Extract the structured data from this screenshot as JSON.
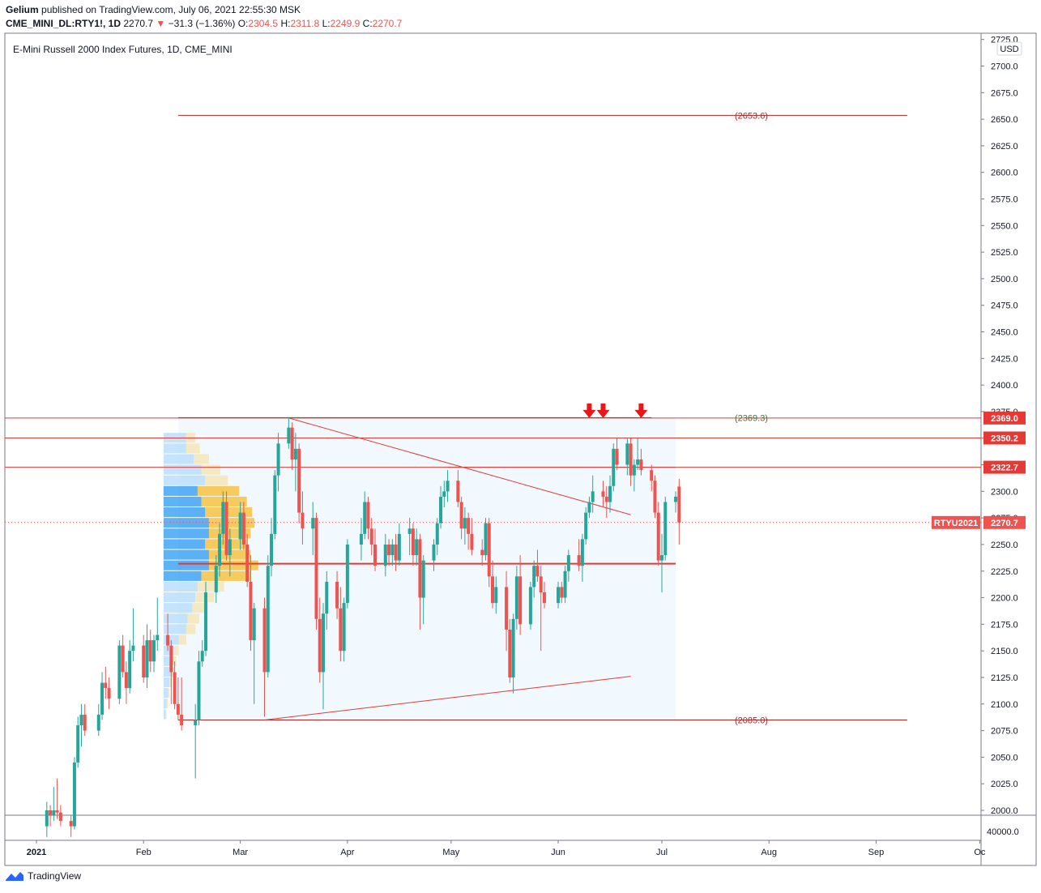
{
  "header": {
    "author": "Gelium",
    "published_text": "published on TradingView.com, July 06, 2021 22:55:30 MSK",
    "symbol": "CME_MINI_DL:RTY1!, 1D",
    "last": "2270.7",
    "change": "−31.3 (−1.36%)",
    "o_label": "O:",
    "o_value": "2304.5",
    "h_label": "H:",
    "h_value": "2311.8",
    "l_label": "L:",
    "l_value": "2249.9",
    "c_label": "C:",
    "c_value": "2270.7"
  },
  "chart_title": "E-Mini Russell 2000 Index Futures, 1D, CME_MINI",
  "currency": "USD",
  "footer": {
    "brand": "TradingView"
  },
  "colors": {
    "up": "#26a69a",
    "down": "#ef5350",
    "level_line": "#d32f2f",
    "accent_text": "#b22222"
  },
  "chart_data": {
    "type": "candlestick",
    "title": "E-Mini Russell 2000 Index Futures, 1D, CME_MINI",
    "y_axis": {
      "range": [
        1990,
        2725
      ],
      "ticks": [
        2000,
        2025,
        2050,
        2075,
        2100,
        2125,
        2150,
        2175,
        2200,
        2225,
        2250,
        2275,
        2300,
        2325,
        2350,
        2375,
        2400,
        2425,
        2450,
        2475,
        2500,
        2525,
        2550,
        2575,
        2600,
        2625,
        2650,
        2675,
        2700,
        2725
      ],
      "volume_tick": "40000.0",
      "scale": "linear"
    },
    "x_axis": {
      "ticks": [
        {
          "label": "2021",
          "date": "2021-01-01"
        },
        {
          "label": "Feb",
          "date": "2021-02-01"
        },
        {
          "label": "Mar",
          "date": "2021-03-01"
        },
        {
          "label": "Apr",
          "date": "2021-04-01"
        },
        {
          "label": "May",
          "date": "2021-05-01"
        },
        {
          "label": "Jun",
          "date": "2021-06-01"
        },
        {
          "label": "Jul",
          "date": "2021-07-01"
        },
        {
          "label": "Aug",
          "date": "2021-08-01"
        },
        {
          "label": "Sep",
          "date": "2021-09-01"
        },
        {
          "label": "Oc",
          "date": "2021-10-01"
        }
      ]
    },
    "price_labels": [
      {
        "text": "2369.0",
        "value": 2369.0,
        "color": "#e53935"
      },
      {
        "text": "2350.2",
        "value": 2350.2,
        "color": "#e53935"
      },
      {
        "text": "2322.7",
        "value": 2322.7,
        "color": "#e53935"
      },
      {
        "text": "2270.7",
        "value": 2270.7,
        "color": "#ef5350",
        "prefix": "RTYU2021"
      }
    ],
    "level_annotations": [
      {
        "text": "(2653.6)",
        "value": 2653.6
      },
      {
        "text": "(2369.3)",
        "value": 2369.3
      },
      {
        "text": "(2085.0)",
        "value": 2085.0
      }
    ],
    "horizontal_levels": [
      2369.0,
      2350.2,
      2322.7,
      2232.0
    ],
    "arrows_at_dates": [
      "2021-06-10",
      "2021-06-14",
      "2021-06-25"
    ],
    "candles": [
      {
        "d": "2021-01-04",
        "o": 1985,
        "h": 2008,
        "l": 1975,
        "c": 2000
      },
      {
        "d": "2021-01-05",
        "o": 2000,
        "h": 2005,
        "l": 1985,
        "c": 1995
      },
      {
        "d": "2021-01-06",
        "o": 1995,
        "h": 2022,
        "l": 1990,
        "c": 2000
      },
      {
        "d": "2021-01-07",
        "o": 2000,
        "h": 2030,
        "l": 1992,
        "c": 1998
      },
      {
        "d": "2021-01-08",
        "o": 1998,
        "h": 2005,
        "l": 1985,
        "c": 1990
      },
      {
        "d": "2021-01-11",
        "o": 1990,
        "h": 1995,
        "l": 1975,
        "c": 1985
      },
      {
        "d": "2021-01-12",
        "o": 1985,
        "h": 2050,
        "l": 1982,
        "c": 2045
      },
      {
        "d": "2021-01-13",
        "o": 2045,
        "h": 2088,
        "l": 2040,
        "c": 2080
      },
      {
        "d": "2021-01-14",
        "o": 2080,
        "h": 2100,
        "l": 2060,
        "c": 2090
      },
      {
        "d": "2021-01-15",
        "o": 2090,
        "h": 2100,
        "l": 2070,
        "c": 2075
      },
      {
        "d": "2021-01-19",
        "o": 2075,
        "h": 2100,
        "l": 2070,
        "c": 2090
      },
      {
        "d": "2021-01-20",
        "o": 2090,
        "h": 2130,
        "l": 2085,
        "c": 2120
      },
      {
        "d": "2021-01-21",
        "o": 2120,
        "h": 2135,
        "l": 2105,
        "c": 2115
      },
      {
        "d": "2021-01-22",
        "o": 2115,
        "h": 2125,
        "l": 2095,
        "c": 2105
      },
      {
        "d": "2021-01-25",
        "o": 2105,
        "h": 2160,
        "l": 2100,
        "c": 2155
      },
      {
        "d": "2021-01-26",
        "o": 2155,
        "h": 2165,
        "l": 2125,
        "c": 2130
      },
      {
        "d": "2021-01-27",
        "o": 2130,
        "h": 2140,
        "l": 2100,
        "c": 2115
      },
      {
        "d": "2021-01-28",
        "o": 2115,
        "h": 2160,
        "l": 2110,
        "c": 2150
      },
      {
        "d": "2021-01-29",
        "o": 2150,
        "h": 2190,
        "l": 2140,
        "c": 2155
      },
      {
        "d": "2021-02-01",
        "o": 2155,
        "h": 2165,
        "l": 2120,
        "c": 2125
      },
      {
        "d": "2021-02-02",
        "o": 2125,
        "h": 2175,
        "l": 2115,
        "c": 2160
      },
      {
        "d": "2021-02-03",
        "o": 2160,
        "h": 2170,
        "l": 2130,
        "c": 2140
      },
      {
        "d": "2021-02-04",
        "o": 2140,
        "h": 2165,
        "l": 2130,
        "c": 2160
      },
      {
        "d": "2021-02-05",
        "o": 2160,
        "h": 2200,
        "l": 2150,
        "c": 2165
      },
      {
        "d": "2021-02-08",
        "o": 2165,
        "h": 2185,
        "l": 2150,
        "c": 2155
      },
      {
        "d": "2021-02-09",
        "o": 2155,
        "h": 2160,
        "l": 2100,
        "c": 2130
      },
      {
        "d": "2021-02-10",
        "o": 2130,
        "h": 2140,
        "l": 2095,
        "c": 2100
      },
      {
        "d": "2021-02-11",
        "o": 2100,
        "h": 2125,
        "l": 2085,
        "c": 2090
      },
      {
        "d": "2021-02-12",
        "o": 2090,
        "h": 2125,
        "l": 2075,
        "c": 2080
      },
      {
        "d": "2021-02-16",
        "o": 2080,
        "h": 2100,
        "l": 2030,
        "c": 2085
      },
      {
        "d": "2021-02-17",
        "o": 2085,
        "h": 2150,
        "l": 2080,
        "c": 2140
      },
      {
        "d": "2021-02-18",
        "o": 2140,
        "h": 2160,
        "l": 2135,
        "c": 2150
      },
      {
        "d": "2021-02-19",
        "o": 2150,
        "h": 2215,
        "l": 2145,
        "c": 2205
      },
      {
        "d": "2021-02-22",
        "o": 2205,
        "h": 2240,
        "l": 2195,
        "c": 2230
      },
      {
        "d": "2021-02-23",
        "o": 2230,
        "h": 2270,
        "l": 2220,
        "c": 2260
      },
      {
        "d": "2021-02-24",
        "o": 2260,
        "h": 2300,
        "l": 2250,
        "c": 2290
      },
      {
        "d": "2021-02-25",
        "o": 2290,
        "h": 2300,
        "l": 2235,
        "c": 2240
      },
      {
        "d": "2021-02-26",
        "o": 2240,
        "h": 2265,
        "l": 2220,
        "c": 2255
      },
      {
        "d": "2021-03-01",
        "o": 2255,
        "h": 2290,
        "l": 2245,
        "c": 2280
      },
      {
        "d": "2021-03-02",
        "o": 2280,
        "h": 2290,
        "l": 2245,
        "c": 2250
      },
      {
        "d": "2021-03-03",
        "o": 2250,
        "h": 2260,
        "l": 2210,
        "c": 2215
      },
      {
        "d": "2021-03-04",
        "o": 2215,
        "h": 2240,
        "l": 2150,
        "c": 2160
      },
      {
        "d": "2021-03-05",
        "o": 2160,
        "h": 2195,
        "l": 2100,
        "c": 2190
      },
      {
        "d": "2021-03-08",
        "o": 2190,
        "h": 2200,
        "l": 2088,
        "c": 2130
      },
      {
        "d": "2021-03-09",
        "o": 2130,
        "h": 2240,
        "l": 2125,
        "c": 2230
      },
      {
        "d": "2021-03-10",
        "o": 2230,
        "h": 2275,
        "l": 2220,
        "c": 2260
      },
      {
        "d": "2021-03-11",
        "o": 2260,
        "h": 2320,
        "l": 2255,
        "c": 2315
      },
      {
        "d": "2021-03-12",
        "o": 2315,
        "h": 2355,
        "l": 2300,
        "c": 2345
      },
      {
        "d": "2021-03-15",
        "o": 2345,
        "h": 2369,
        "l": 2340,
        "c": 2360
      },
      {
        "d": "2021-03-16",
        "o": 2360,
        "h": 2365,
        "l": 2320,
        "c": 2330
      },
      {
        "d": "2021-03-17",
        "o": 2330,
        "h": 2355,
        "l": 2300,
        "c": 2340
      },
      {
        "d": "2021-03-18",
        "o": 2340,
        "h": 2345,
        "l": 2270,
        "c": 2280
      },
      {
        "d": "2021-03-19",
        "o": 2280,
        "h": 2300,
        "l": 2250,
        "c": 2265
      },
      {
        "d": "2021-03-22",
        "o": 2265,
        "h": 2290,
        "l": 2240,
        "c": 2275
      },
      {
        "d": "2021-03-23",
        "o": 2275,
        "h": 2280,
        "l": 2170,
        "c": 2180
      },
      {
        "d": "2021-03-24",
        "o": 2180,
        "h": 2200,
        "l": 2120,
        "c": 2130
      },
      {
        "d": "2021-03-25",
        "o": 2130,
        "h": 2195,
        "l": 2095,
        "c": 2185
      },
      {
        "d": "2021-03-26",
        "o": 2185,
        "h": 2225,
        "l": 2170,
        "c": 2215
      },
      {
        "d": "2021-03-29",
        "o": 2215,
        "h": 2225,
        "l": 2180,
        "c": 2190
      },
      {
        "d": "2021-03-30",
        "o": 2190,
        "h": 2210,
        "l": 2140,
        "c": 2150
      },
      {
        "d": "2021-03-31",
        "o": 2150,
        "h": 2200,
        "l": 2140,
        "c": 2195
      },
      {
        "d": "2021-04-01",
        "o": 2195,
        "h": 2255,
        "l": 2190,
        "c": 2250
      },
      {
        "d": "2021-04-05",
        "o": 2250,
        "h": 2275,
        "l": 2235,
        "c": 2260
      },
      {
        "d": "2021-04-06",
        "o": 2260,
        "h": 2300,
        "l": 2255,
        "c": 2290
      },
      {
        "d": "2021-04-07",
        "o": 2290,
        "h": 2295,
        "l": 2255,
        "c": 2265
      },
      {
        "d": "2021-04-08",
        "o": 2265,
        "h": 2275,
        "l": 2240,
        "c": 2250
      },
      {
        "d": "2021-04-09",
        "o": 2250,
        "h": 2265,
        "l": 2225,
        "c": 2230
      },
      {
        "d": "2021-04-12",
        "o": 2230,
        "h": 2260,
        "l": 2220,
        "c": 2250
      },
      {
        "d": "2021-04-13",
        "o": 2250,
        "h": 2255,
        "l": 2230,
        "c": 2240
      },
      {
        "d": "2021-04-14",
        "o": 2240,
        "h": 2255,
        "l": 2230,
        "c": 2250
      },
      {
        "d": "2021-04-15",
        "o": 2250,
        "h": 2260,
        "l": 2225,
        "c": 2235
      },
      {
        "d": "2021-04-16",
        "o": 2235,
        "h": 2270,
        "l": 2230,
        "c": 2260
      },
      {
        "d": "2021-04-19",
        "o": 2260,
        "h": 2275,
        "l": 2240,
        "c": 2265
      },
      {
        "d": "2021-04-20",
        "o": 2265,
        "h": 2270,
        "l": 2230,
        "c": 2240
      },
      {
        "d": "2021-04-21",
        "o": 2240,
        "h": 2265,
        "l": 2230,
        "c": 2255
      },
      {
        "d": "2021-04-22",
        "o": 2255,
        "h": 2260,
        "l": 2170,
        "c": 2200
      },
      {
        "d": "2021-04-23",
        "o": 2200,
        "h": 2240,
        "l": 2175,
        "c": 2235
      },
      {
        "d": "2021-04-26",
        "o": 2235,
        "h": 2255,
        "l": 2225,
        "c": 2250
      },
      {
        "d": "2021-04-27",
        "o": 2250,
        "h": 2275,
        "l": 2240,
        "c": 2270
      },
      {
        "d": "2021-04-28",
        "o": 2270,
        "h": 2305,
        "l": 2265,
        "c": 2295
      },
      {
        "d": "2021-04-29",
        "o": 2295,
        "h": 2310,
        "l": 2285,
        "c": 2300
      },
      {
        "d": "2021-04-30",
        "o": 2300,
        "h": 2320,
        "l": 2290,
        "c": 2310
      },
      {
        "d": "2021-05-03",
        "o": 2310,
        "h": 2320,
        "l": 2285,
        "c": 2290
      },
      {
        "d": "2021-05-04",
        "o": 2290,
        "h": 2295,
        "l": 2255,
        "c": 2265
      },
      {
        "d": "2021-05-05",
        "o": 2265,
        "h": 2285,
        "l": 2250,
        "c": 2275
      },
      {
        "d": "2021-05-06",
        "o": 2275,
        "h": 2280,
        "l": 2245,
        "c": 2260
      },
      {
        "d": "2021-05-07",
        "o": 2260,
        "h": 2275,
        "l": 2240,
        "c": 2245
      },
      {
        "d": "2021-05-10",
        "o": 2245,
        "h": 2255,
        "l": 2230,
        "c": 2240
      },
      {
        "d": "2021-05-11",
        "o": 2240,
        "h": 2275,
        "l": 2235,
        "c": 2270
      },
      {
        "d": "2021-05-12",
        "o": 2270,
        "h": 2275,
        "l": 2210,
        "c": 2220
      },
      {
        "d": "2021-05-13",
        "o": 2220,
        "h": 2235,
        "l": 2190,
        "c": 2195
      },
      {
        "d": "2021-05-14",
        "o": 2195,
        "h": 2220,
        "l": 2185,
        "c": 2210
      },
      {
        "d": "2021-05-17",
        "o": 2210,
        "h": 2225,
        "l": 2150,
        "c": 2170
      },
      {
        "d": "2021-05-18",
        "o": 2170,
        "h": 2180,
        "l": 2120,
        "c": 2125
      },
      {
        "d": "2021-05-19",
        "o": 2125,
        "h": 2185,
        "l": 2110,
        "c": 2180
      },
      {
        "d": "2021-05-20",
        "o": 2180,
        "h": 2230,
        "l": 2170,
        "c": 2220
      },
      {
        "d": "2021-05-21",
        "o": 2220,
        "h": 2240,
        "l": 2165,
        "c": 2175
      },
      {
        "d": "2021-05-24",
        "o": 2175,
        "h": 2215,
        "l": 2170,
        "c": 2210
      },
      {
        "d": "2021-05-25",
        "o": 2210,
        "h": 2235,
        "l": 2200,
        "c": 2230
      },
      {
        "d": "2021-05-26",
        "o": 2230,
        "h": 2245,
        "l": 2215,
        "c": 2220
      },
      {
        "d": "2021-05-27",
        "o": 2220,
        "h": 2230,
        "l": 2150,
        "c": 2205
      },
      {
        "d": "2021-05-28",
        "o": 2205,
        "h": 2215,
        "l": 2190,
        "c": 2195
      },
      {
        "d": "2021-06-01",
        "o": 2195,
        "h": 2215,
        "l": 2190,
        "c": 2210
      },
      {
        "d": "2021-06-02",
        "o": 2210,
        "h": 2215,
        "l": 2195,
        "c": 2200
      },
      {
        "d": "2021-06-03",
        "o": 2200,
        "h": 2230,
        "l": 2195,
        "c": 2225
      },
      {
        "d": "2021-06-04",
        "o": 2225,
        "h": 2245,
        "l": 2215,
        "c": 2240
      },
      {
        "d": "2021-06-07",
        "o": 2240,
        "h": 2255,
        "l": 2225,
        "c": 2230
      },
      {
        "d": "2021-06-08",
        "o": 2230,
        "h": 2260,
        "l": 2215,
        "c": 2255
      },
      {
        "d": "2021-06-09",
        "o": 2255,
        "h": 2285,
        "l": 2250,
        "c": 2280
      },
      {
        "d": "2021-06-10",
        "o": 2280,
        "h": 2295,
        "l": 2275,
        "c": 2290
      },
      {
        "d": "2021-06-11",
        "o": 2290,
        "h": 2315,
        "l": 2280,
        "c": 2300
      },
      {
        "d": "2021-06-14",
        "o": 2300,
        "h": 2310,
        "l": 2285,
        "c": 2295
      },
      {
        "d": "2021-06-15",
        "o": 2295,
        "h": 2305,
        "l": 2275,
        "c": 2290
      },
      {
        "d": "2021-06-16",
        "o": 2290,
        "h": 2315,
        "l": 2280,
        "c": 2305
      },
      {
        "d": "2021-06-17",
        "o": 2305,
        "h": 2345,
        "l": 2300,
        "c": 2340
      },
      {
        "d": "2021-06-18",
        "o": 2340,
        "h": 2350,
        "l": 2320,
        "c": 2325
      },
      {
        "d": "2021-06-21",
        "o": 2325,
        "h": 2350,
        "l": 2315,
        "c": 2345
      },
      {
        "d": "2021-06-22",
        "o": 2345,
        "h": 2350,
        "l": 2305,
        "c": 2315
      },
      {
        "d": "2021-06-23",
        "o": 2315,
        "h": 2330,
        "l": 2300,
        "c": 2325
      },
      {
        "d": "2021-06-24",
        "o": 2325,
        "h": 2350,
        "l": 2320,
        "c": 2330
      },
      {
        "d": "2021-06-25",
        "o": 2330,
        "h": 2340,
        "l": 2315,
        "c": 2320
      },
      {
        "d": "2021-06-28",
        "o": 2320,
        "h": 2325,
        "l": 2300,
        "c": 2310
      },
      {
        "d": "2021-06-29",
        "o": 2310,
        "h": 2315,
        "l": 2275,
        "c": 2280
      },
      {
        "d": "2021-06-30",
        "o": 2280,
        "h": 2290,
        "l": 2230,
        "c": 2235
      },
      {
        "d": "2021-07-01",
        "o": 2235,
        "h": 2260,
        "l": 2205,
        "c": 2240
      },
      {
        "d": "2021-07-02",
        "o": 2240,
        "h": 2295,
        "l": 2235,
        "c": 2290
      },
      {
        "d": "2021-07-05",
        "o": 2290,
        "h": 2300,
        "l": 2280,
        "c": 2295
      },
      {
        "d": "2021-07-06",
        "o": 2304.5,
        "h": 2311.8,
        "l": 2249.9,
        "c": 2270.7
      }
    ]
  }
}
